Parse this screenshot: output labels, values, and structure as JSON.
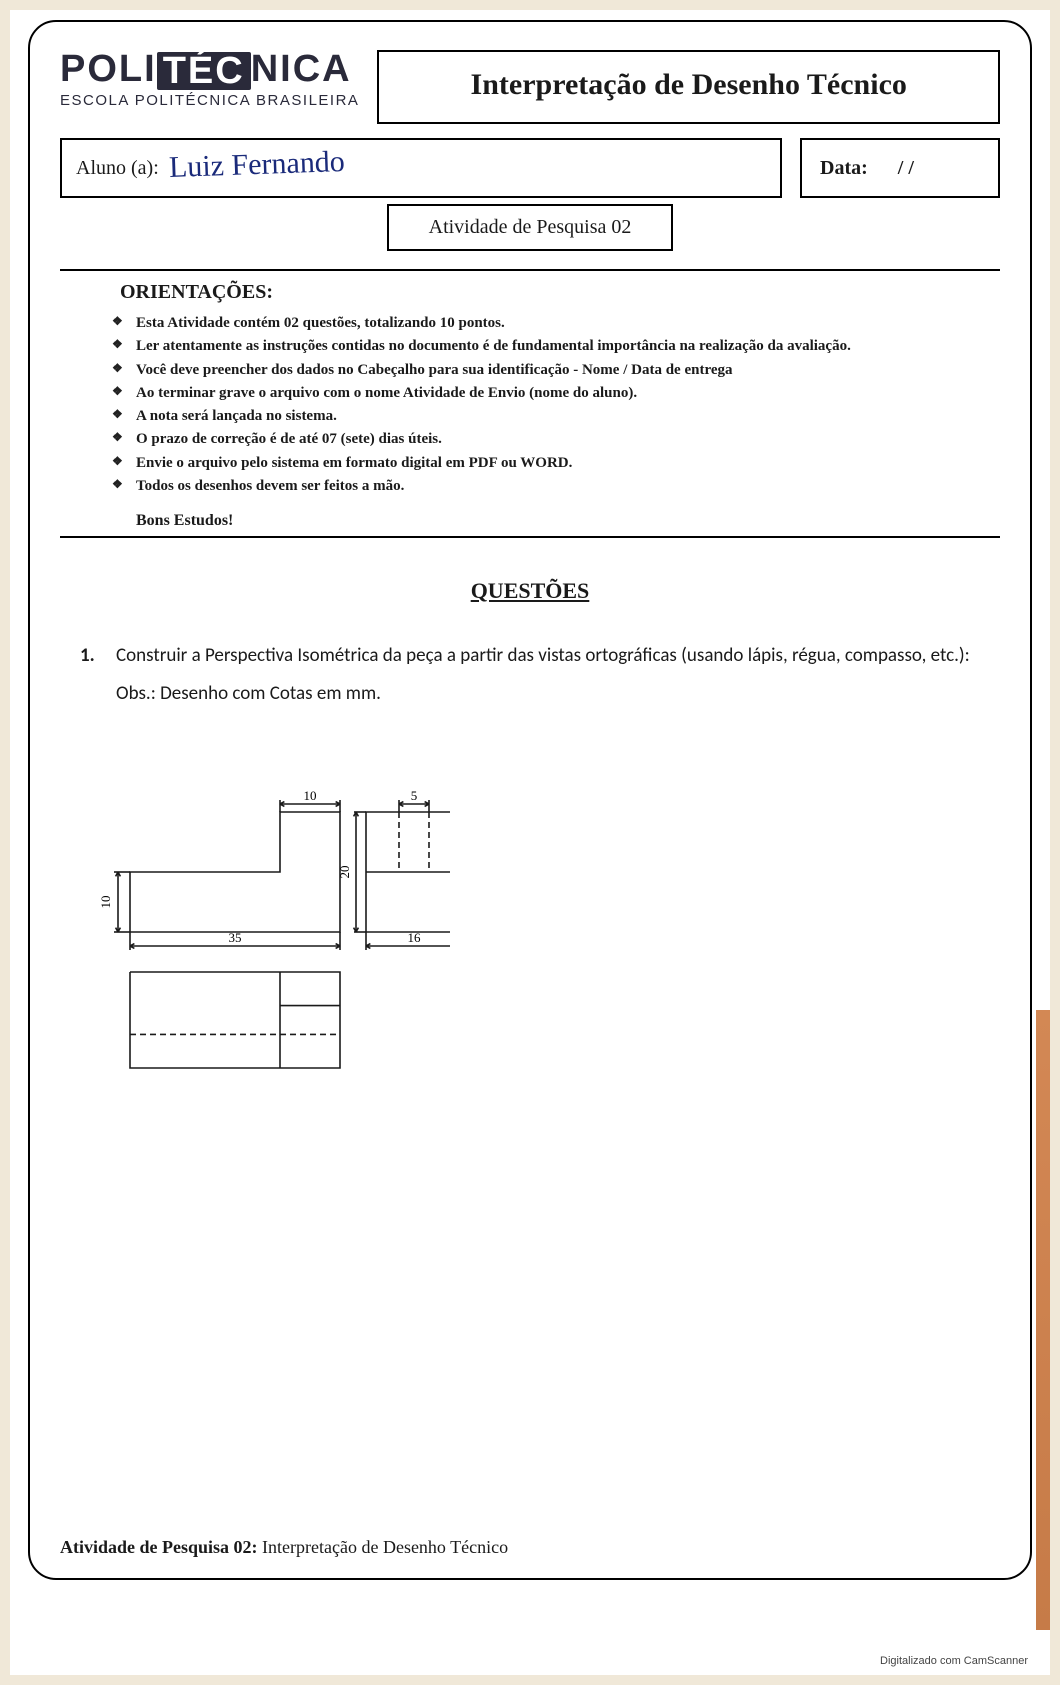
{
  "logo": {
    "line1_pre": "POLI",
    "line1_box": "TÉC",
    "line1_post": "NICA",
    "line2": "ESCOLA POLITÉCNICA BRASILEIRA"
  },
  "course_title": "Interpretação de Desenho Técnico",
  "aluno": {
    "label": "Aluno (a):",
    "value": "Luiz Fernando"
  },
  "data": {
    "label": "Data:",
    "value": "/   /"
  },
  "activity_label": "Atividade de Pesquisa 02",
  "orientacoes_heading": "ORIENTAÇÕES:",
  "orientacoes": [
    "Esta Atividade contém 02 questões, totalizando 10 pontos.",
    "Ler atentamente as instruções contidas no documento é de fundamental importância na realização da avaliação.",
    "Você deve preencher dos dados no Cabeçalho para sua identificação - Nome / Data de entrega",
    "Ao terminar grave o arquivo com o nome Atividade de Envio (nome do aluno).",
    "A nota será lançada no sistema.",
    "O prazo de correção é de até 07 (sete) dias úteis.",
    "Envie o arquivo pelo sistema em formato digital em PDF ou WORD.",
    "Todos os desenhos devem ser feitos a mão."
  ],
  "bons": "Bons Estudos!",
  "questoes_heading": "QUESTÕES",
  "q1": {
    "num": "1.",
    "text": "Construir a Perspectiva Isométrica da peça a partir das vistas ortográficas (usando lápis, régua, compasso, etc.):",
    "obs": "Obs.: Desenho com Cotas em mm."
  },
  "drawing": {
    "scale": 6,
    "stroke": "#1a1a1a",
    "stroke_w": 1.6,
    "dims": {
      "d10a": "10",
      "d5": "5",
      "d20": "20",
      "d10b": "10",
      "d35": "35",
      "d16": "16"
    },
    "font_size": 13
  },
  "footer": {
    "bold": "Atividade de Pesquisa 02:",
    "rest": " Interpretação de Desenho Técnico"
  },
  "camscanner": "Digitalizado com CamScanner"
}
